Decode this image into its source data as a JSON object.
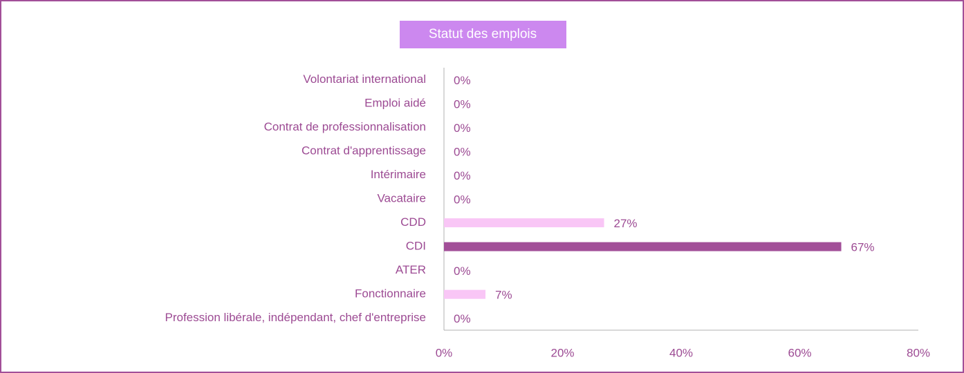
{
  "chart_data": {
    "type": "bar",
    "orientation": "horizontal",
    "title": "Statut des emplois",
    "categories": [
      "Volontariat international",
      "Emploi aidé",
      "Contrat de professionnalisation",
      "Contrat d'apprentissage",
      "Intérimaire",
      "Vacataire",
      "CDD",
      "CDI",
      "ATER",
      "Fonctionnaire",
      "Profession libérale, indépendant, chef d'entreprise"
    ],
    "values": [
      0,
      0,
      0,
      0,
      0,
      0,
      27,
      67,
      0,
      7,
      0
    ],
    "value_labels": [
      "0%",
      "0%",
      "0%",
      "0%",
      "0%",
      "0%",
      "27%",
      "67%",
      "0%",
      "7%",
      "0%"
    ],
    "colors": [
      "#f9c6f6",
      "#f9c6f6",
      "#f9c6f6",
      "#f9c6f6",
      "#f9c6f6",
      "#f9c6f6",
      "#f9c6f6",
      "#a24f98",
      "#f9c6f6",
      "#f9c6f6",
      "#f9c6f6"
    ],
    "xlim": [
      0,
      80
    ],
    "xticks": [
      {
        "value": 0,
        "label": "0%"
      },
      {
        "value": 20,
        "label": "20%"
      },
      {
        "value": 40,
        "label": "40%"
      },
      {
        "value": 60,
        "label": "60%"
      },
      {
        "value": 80,
        "label": "80%"
      }
    ]
  }
}
